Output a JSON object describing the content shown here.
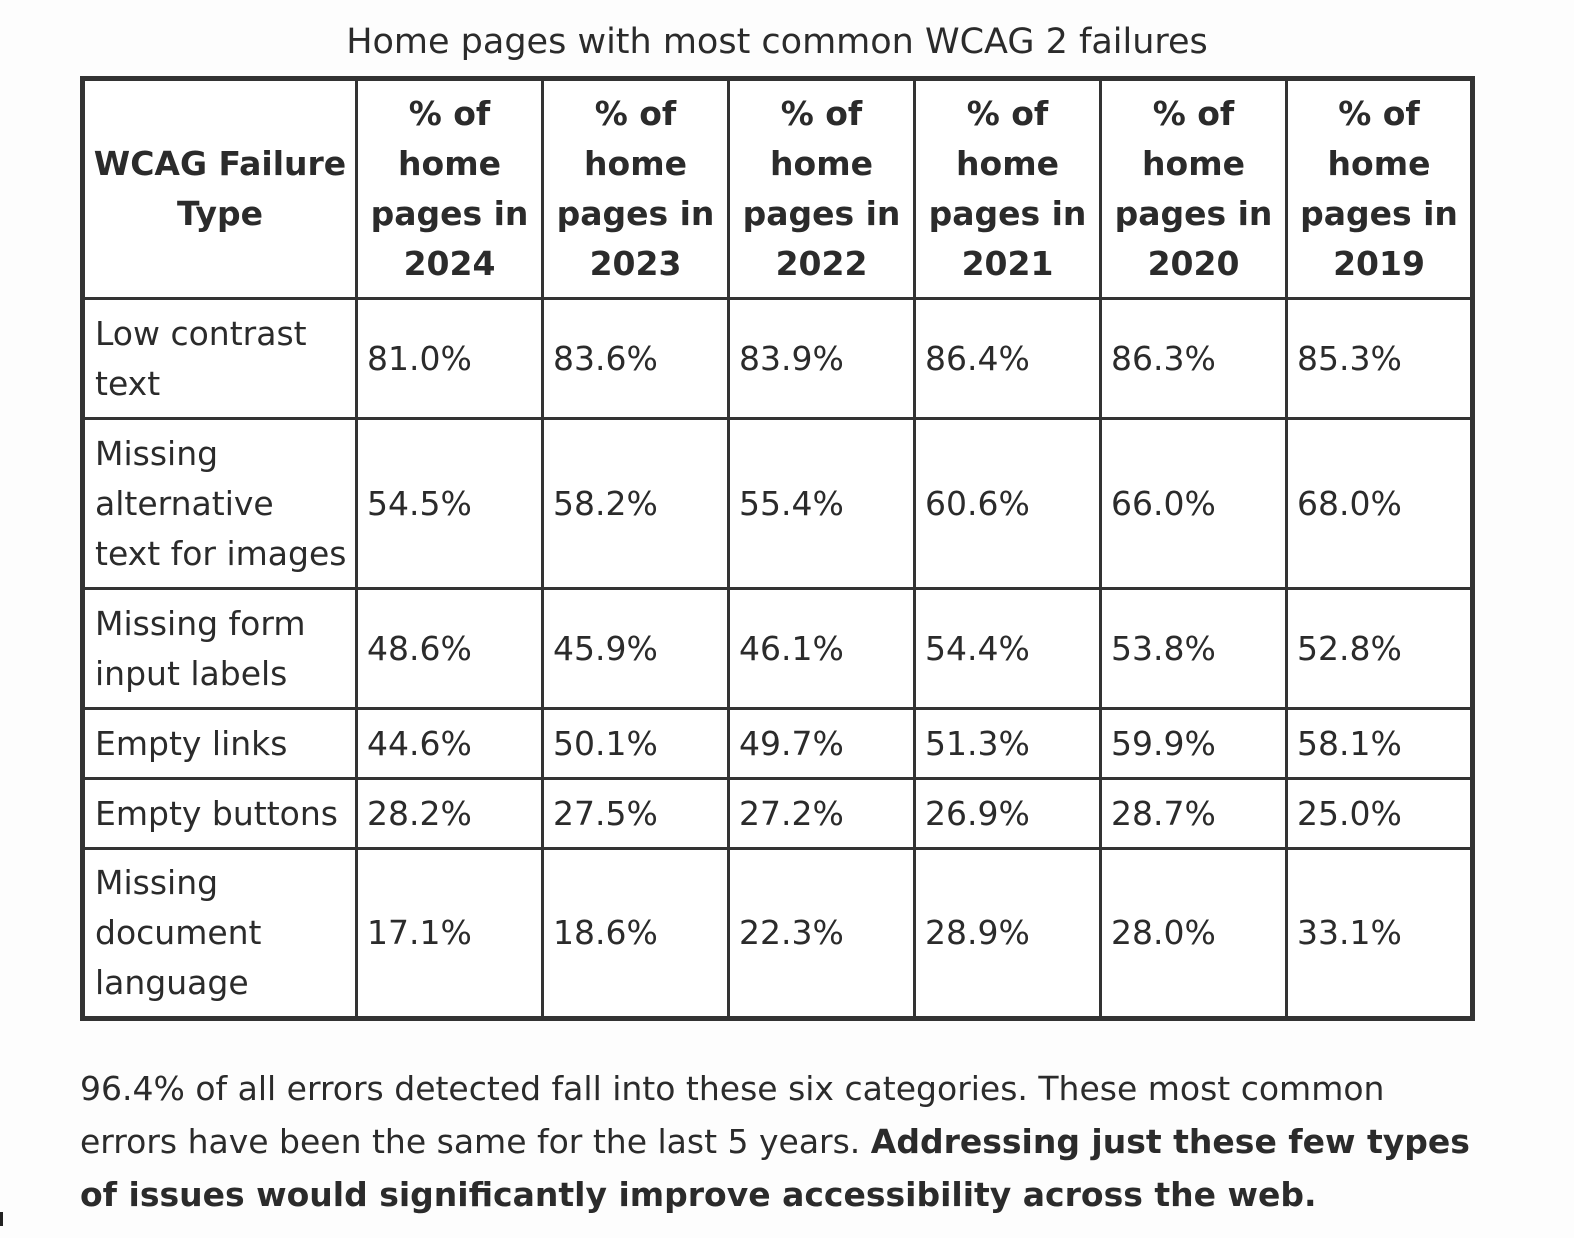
{
  "table": {
    "caption": "Home pages with most common WCAG 2 failures",
    "headers": [
      "WCAG Failure Type",
      "% of home pages in 2024",
      "% of home pages in 2023",
      "% of home pages in 2022",
      "% of home pages in 2021",
      "% of home pages in 2020",
      "% of home pages in 2019"
    ],
    "rows": [
      {
        "type": "Low contrast text",
        "values": [
          "81.0%",
          "83.6%",
          "83.9%",
          "86.4%",
          "86.3%",
          "85.3%"
        ]
      },
      {
        "type": "Missing alternative text for images",
        "values": [
          "54.5%",
          "58.2%",
          "55.4%",
          "60.6%",
          "66.0%",
          "68.0%"
        ]
      },
      {
        "type": "Missing form input labels",
        "values": [
          "48.6%",
          "45.9%",
          "46.1%",
          "54.4%",
          "53.8%",
          "52.8%"
        ]
      },
      {
        "type": "Empty links",
        "values": [
          "44.6%",
          "50.1%",
          "49.7%",
          "51.3%",
          "59.9%",
          "58.1%"
        ]
      },
      {
        "type": "Empty buttons",
        "values": [
          "28.2%",
          "27.5%",
          "27.2%",
          "26.9%",
          "28.7%",
          "25.0%"
        ]
      },
      {
        "type": "Missing document language",
        "values": [
          "17.1%",
          "18.6%",
          "22.3%",
          "28.9%",
          "28.0%",
          "33.1%"
        ]
      }
    ]
  },
  "summary": {
    "text": "96.4% of all errors detected fall into these six categories. These most common errors have been the same for the last 5 years. ",
    "bold": "Addressing just these few types of issues would significantly improve accessibility across the web."
  }
}
